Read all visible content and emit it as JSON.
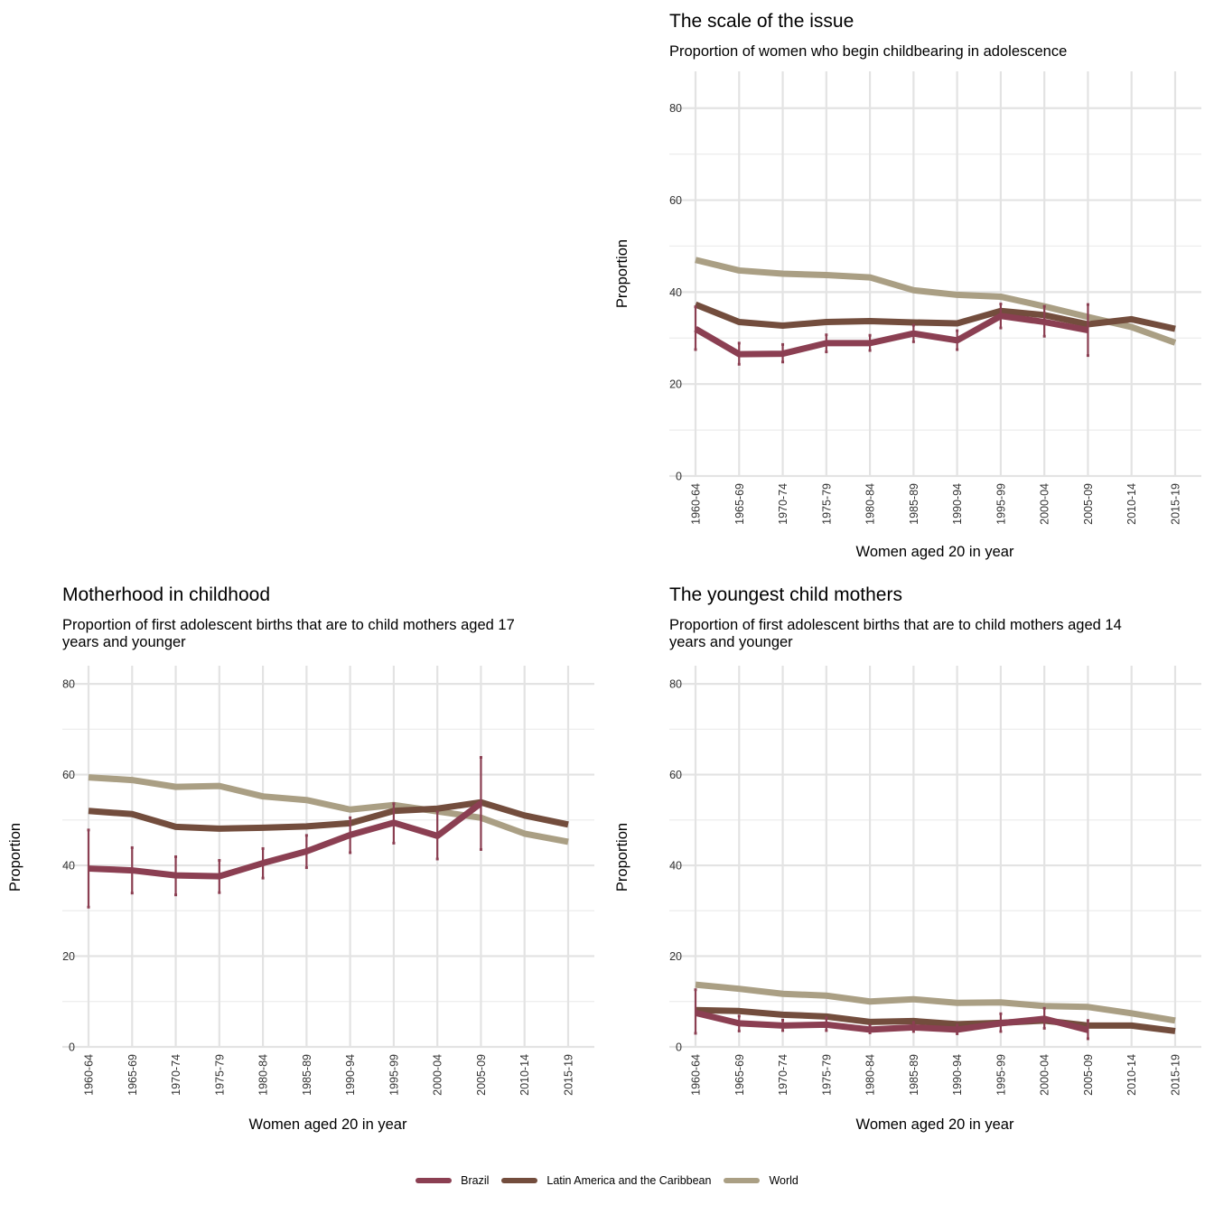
{
  "colors": {
    "Brazil": "#8b3f52",
    "Latin America and the Caribbean": "#734d3d",
    "World": "#aa9f84"
  },
  "legend": [
    "Brazil",
    "Latin America and the Caribbean",
    "World"
  ],
  "chart_data": [
    {
      "type": "line",
      "title": "The scale of the issue",
      "subtitle": "Proportion of women who begin childbearing in adolescence",
      "xlabel": "Women aged 20 in year",
      "ylabel": "Proportion",
      "ylim": [
        0,
        88
      ],
      "yticks": [
        0,
        20,
        40,
        60,
        80
      ],
      "categories": [
        "1960-64",
        "1965-69",
        "1970-74",
        "1975-79",
        "1980-84",
        "1985-89",
        "1990-94",
        "1995-99",
        "2000-04",
        "2005-09",
        "2010-14",
        "2015-19"
      ],
      "grid": true,
      "series": [
        {
          "name": "World",
          "values": [
            47.0,
            44.7,
            44.0,
            43.7,
            43.2,
            40.4,
            39.4,
            39.0,
            36.9,
            34.6,
            32.4,
            29.0
          ]
        },
        {
          "name": "Latin America and the Caribbean",
          "values": [
            37.3,
            33.5,
            32.7,
            33.5,
            33.7,
            33.4,
            33.2,
            35.9,
            35.0,
            33.0,
            34.1,
            32.0
          ]
        },
        {
          "name": "Brazil",
          "values": [
            32.0,
            26.5,
            26.6,
            28.9,
            28.9,
            31.0,
            29.5,
            34.8,
            33.5,
            31.7,
            null,
            null
          ],
          "error_low": [
            27.5,
            24.3,
            24.8,
            27.0,
            27.3,
            29.2,
            27.5,
            32.2,
            30.4,
            26.2,
            null,
            null
          ],
          "error_high": [
            36.8,
            28.9,
            28.6,
            30.7,
            30.6,
            32.8,
            31.6,
            37.4,
            36.9,
            37.3,
            null,
            null
          ]
        }
      ]
    },
    {
      "type": "line",
      "title": "Motherhood in childhood",
      "subtitle": "Proportion of first adolescent births that are to child mothers aged 17 years and younger",
      "xlabel": "Women aged 20 in year",
      "ylabel": "Proportion",
      "ylim": [
        0,
        84
      ],
      "yticks": [
        0,
        20,
        40,
        60,
        80
      ],
      "categories": [
        "1960-64",
        "1965-69",
        "1970-74",
        "1975-79",
        "1980-84",
        "1985-89",
        "1990-94",
        "1995-99",
        "2000-04",
        "2005-09",
        "2010-14",
        "2015-19"
      ],
      "grid": true,
      "series": [
        {
          "name": "World",
          "values": [
            59.4,
            58.8,
            57.3,
            57.5,
            55.2,
            54.4,
            52.3,
            53.3,
            51.9,
            50.5,
            47.0,
            45.2
          ]
        },
        {
          "name": "Latin America and the Caribbean",
          "values": [
            52.0,
            51.3,
            48.5,
            48.1,
            48.3,
            48.6,
            49.3,
            52.0,
            52.5,
            53.9,
            51.0,
            49.0
          ]
        },
        {
          "name": "Brazil",
          "values": [
            39.3,
            38.9,
            37.8,
            37.6,
            40.5,
            43.1,
            46.7,
            49.4,
            46.5,
            53.7,
            null,
            null
          ],
          "error_low": [
            30.8,
            33.9,
            33.5,
            34.0,
            37.2,
            39.5,
            42.8,
            44.9,
            41.4,
            43.5,
            null,
            null
          ],
          "error_high": [
            47.8,
            43.9,
            41.9,
            41.1,
            43.7,
            46.6,
            50.5,
            53.6,
            51.8,
            63.8,
            null,
            null
          ]
        }
      ]
    },
    {
      "type": "line",
      "title": "The youngest child mothers",
      "subtitle": "Proportion of first adolescent births that are to child mothers aged 14 years and younger",
      "xlabel": "Women aged 20 in year",
      "ylabel": "Proportion",
      "ylim": [
        0,
        84
      ],
      "yticks": [
        0,
        20,
        40,
        60,
        80
      ],
      "categories": [
        "1960-64",
        "1965-69",
        "1970-74",
        "1975-79",
        "1980-84",
        "1985-89",
        "1990-94",
        "1995-99",
        "2000-04",
        "2005-09",
        "2010-14",
        "2015-19"
      ],
      "grid": true,
      "series": [
        {
          "name": "World",
          "values": [
            13.7,
            12.8,
            11.7,
            11.3,
            10.0,
            10.5,
            9.7,
            9.8,
            9.0,
            8.8,
            7.4,
            5.8
          ]
        },
        {
          "name": "Latin America and the Caribbean",
          "values": [
            8.1,
            7.9,
            7.1,
            6.7,
            5.5,
            5.7,
            5.0,
            5.3,
            5.8,
            4.7,
            4.7,
            3.5
          ]
        },
        {
          "name": "Brazil",
          "values": [
            7.5,
            5.2,
            4.7,
            4.9,
            3.8,
            4.3,
            3.8,
            5.2,
            6.2,
            3.7,
            null,
            null
          ],
          "error_low": [
            3.0,
            3.5,
            3.6,
            3.6,
            3.1,
            3.4,
            2.9,
            3.4,
            4.1,
            1.8,
            null,
            null
          ],
          "error_high": [
            12.6,
            6.8,
            5.9,
            6.4,
            4.7,
            5.4,
            4.8,
            7.3,
            8.5,
            5.8,
            null,
            null
          ]
        }
      ]
    }
  ]
}
